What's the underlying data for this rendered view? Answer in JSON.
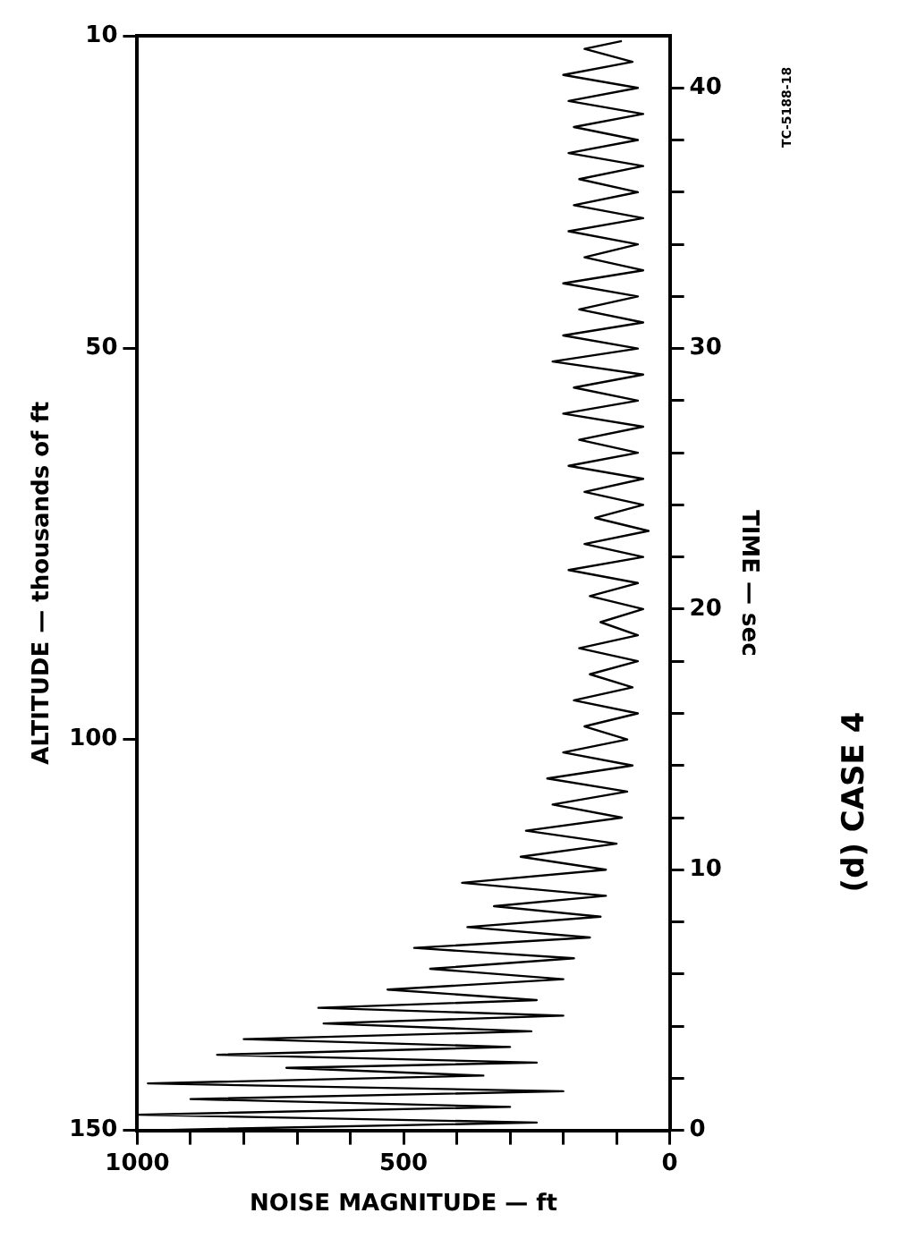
{
  "chart_data": {
    "type": "line",
    "xlabel": "NOISE MAGNITUDE — ft",
    "y2label": "TIME — sec",
    "ylabel": "ALTITUDE — thousands of ft",
    "annotations": [
      "(d) CASE 4",
      "TC-5188-18"
    ],
    "y2lim": [
      0,
      42
    ],
    "y2ticks": [
      0,
      {
        "value": 2,
        "label": null
      },
      {
        "value": 4,
        "label": null
      },
      {
        "value": 6,
        "label": null
      },
      {
        "value": 8,
        "label": null
      },
      10,
      {
        "value": 12,
        "label": null
      },
      {
        "value": 14,
        "label": null
      },
      {
        "value": 16,
        "label": null
      },
      {
        "value": 18,
        "label": null
      },
      20,
      {
        "value": 22,
        "label": null
      },
      {
        "value": 24,
        "label": null
      },
      {
        "value": 26,
        "label": null
      },
      {
        "value": 28,
        "label": null
      },
      30,
      {
        "value": 32,
        "label": null
      },
      {
        "value": 34,
        "label": null
      },
      {
        "value": 36,
        "label": null
      },
      {
        "value": 38,
        "label": null
      },
      40
    ],
    "ylim": [
      150,
      10
    ],
    "yticks": [
      150,
      100,
      50,
      10
    ],
    "xlim": [
      1000,
      0
    ],
    "xticks": [
      1000,
      {
        "value": 900,
        "label": null
      },
      {
        "value": 800,
        "label": null
      },
      {
        "value": 700,
        "label": null
      },
      {
        "value": 600,
        "label": null
      },
      500,
      {
        "value": 400,
        "label": null
      },
      {
        "value": 300,
        "label": null
      },
      {
        "value": 200,
        "label": null
      },
      {
        "value": 100,
        "label": null
      },
      0
    ],
    "grid": false,
    "legend": false,
    "marker": "none",
    "line_style": "solid",
    "series": [
      {
        "color": "#000000",
        "axis": "y2",
        "x": [
          980,
          250,
          1000,
          300,
          900,
          200,
          980,
          350,
          720,
          250,
          850,
          300,
          800,
          260,
          650,
          200,
          660,
          250,
          530,
          200,
          450,
          180,
          480,
          150,
          380,
          130,
          330,
          120,
          390,
          120,
          280,
          100,
          270,
          90,
          220,
          80,
          230,
          70,
          200,
          80,
          160,
          60,
          180,
          70,
          150,
          60,
          170,
          60,
          130,
          50,
          150,
          60,
          190,
          50,
          160,
          40,
          140,
          50,
          160,
          50,
          190,
          60,
          170,
          50,
          200,
          60,
          180,
          50,
          220,
          60,
          200,
          50,
          170,
          60,
          200,
          50,
          160,
          60,
          190,
          50,
          180,
          60,
          170,
          50,
          190,
          60,
          180,
          50,
          190,
          60,
          200,
          70,
          160,
          90
        ],
        "values": [
          0,
          0.3,
          0.6,
          0.9,
          1.2,
          1.5,
          1.8,
          2.1,
          2.4,
          2.6,
          2.9,
          3.2,
          3.5,
          3.8,
          4.1,
          4.4,
          4.7,
          5,
          5.4,
          5.8,
          6.2,
          6.6,
          7,
          7.4,
          7.8,
          8.2,
          8.6,
          9,
          9.5,
          10,
          10.5,
          11,
          11.5,
          12,
          12.5,
          13,
          13.5,
          14,
          14.5,
          15,
          15.5,
          16,
          16.5,
          17,
          17.5,
          18,
          18.5,
          19,
          19.5,
          20,
          20.5,
          21,
          21.5,
          22,
          22.5,
          23,
          23.5,
          24,
          24.5,
          25,
          25.5,
          26,
          26.5,
          27,
          27.5,
          28,
          28.5,
          29,
          29.5,
          30,
          30.5,
          31,
          31.5,
          32,
          32.5,
          33,
          33.5,
          34,
          34.5,
          35,
          35.5,
          36,
          36.5,
          37,
          37.5,
          38,
          38.5,
          39,
          39.5,
          40,
          40.5,
          41,
          41.5,
          41.8
        ]
      }
    ]
  }
}
